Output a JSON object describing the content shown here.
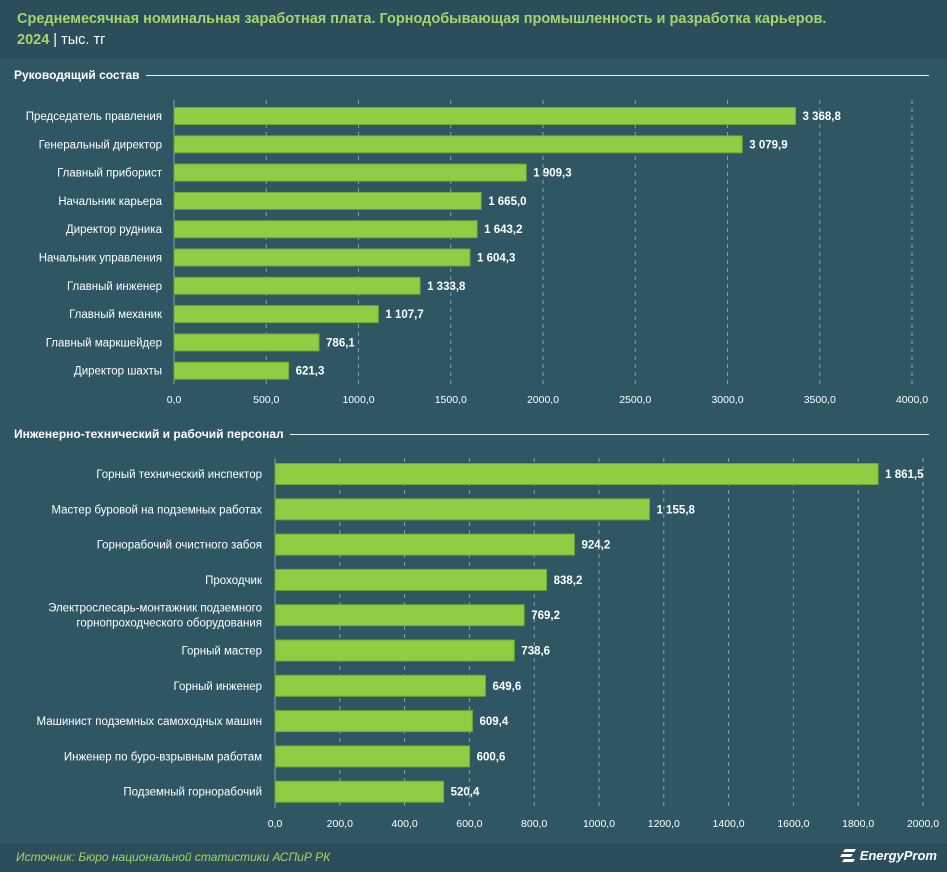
{
  "header": {
    "title_line1": "Среднемесячная номинальная заработная плата. Горнодобывающая промышленность и разработка карьеров.",
    "year": "2024",
    "separator": "|",
    "unit": "тыс. тг"
  },
  "chart_data": [
    {
      "type": "bar",
      "orientation": "horizontal",
      "title": "Руководящий состав",
      "categories": [
        "Председатель правления",
        "Генеральный директор",
        "Главный приборист",
        "Начальник карьера",
        "Директор рудника",
        "Начальник управления",
        "Главный инженер",
        "Главный механик",
        "Главный маркшейдер",
        "Директор шахты"
      ],
      "values": [
        3368.8,
        3079.9,
        1909.3,
        1665.0,
        1643.2,
        1604.3,
        1333.8,
        1107.7,
        786.1,
        621.3
      ],
      "value_labels": [
        "3 368,8",
        "3 079,9",
        "1 909,3",
        "1 665,0",
        "1 643,2",
        "1 604,3",
        "1 333,8",
        "1 107,7",
        "786,1",
        "621,3"
      ],
      "xlim": [
        0,
        4000
      ],
      "ticks": [
        0,
        500,
        1000,
        1500,
        2000,
        2500,
        3000,
        3500,
        4000
      ],
      "tick_labels": [
        "0,0",
        "500,0",
        "1000,0",
        "1500,0",
        "2000,0",
        "2500,0",
        "3000,0",
        "3500,0",
        "4000,0"
      ],
      "grid": "dashed vertical"
    },
    {
      "type": "bar",
      "orientation": "horizontal",
      "title": "Инженерно-технический и рабочий персонал",
      "categories": [
        [
          "Горный технический инспектор"
        ],
        [
          "Мастер буровой на подземных работах"
        ],
        [
          "Горнорабочий очистного забоя"
        ],
        [
          "Проходчик"
        ],
        [
          "Электрослесарь-монтажник подземного",
          "горнопроходческого оборудования"
        ],
        [
          "Горный мастер"
        ],
        [
          "Горный инженер"
        ],
        [
          "Машинист подземных самоходных машин"
        ],
        [
          "Инженер по буро-взрывным работам"
        ],
        [
          "Подземный горнорабочий"
        ]
      ],
      "values": [
        1861.5,
        1155.8,
        924.2,
        838.2,
        769.2,
        738.6,
        649.6,
        609.4,
        600.6,
        520.4
      ],
      "value_labels": [
        "1 861,5",
        "1 155,8",
        "924,2",
        "838,2",
        "769,2",
        "738,6",
        "649,6",
        "609,4",
        "600,6",
        "520,4"
      ],
      "xlim": [
        0,
        2000
      ],
      "ticks": [
        0,
        200,
        400,
        600,
        800,
        1000,
        1200,
        1400,
        1600,
        1800,
        2000
      ],
      "tick_labels": [
        "0,0",
        "200,0",
        "400,0",
        "600,0",
        "800,0",
        "1000,0",
        "1200,0",
        "1400,0",
        "1600,0",
        "1800,0",
        "2000,0"
      ],
      "grid": "dashed vertical"
    }
  ],
  "colors": {
    "bar": "#8fcd45",
    "bar_border": "#6fa830",
    "grid": "#7fa6b0",
    "title_accent": "#a7d46b",
    "background": "#2f5663"
  },
  "footer": {
    "source": "Источник: Бюро национальной статистики АСПиР РК",
    "logo_icon": "energyprom-logo-icon",
    "logo_text": "EnergyProm"
  }
}
